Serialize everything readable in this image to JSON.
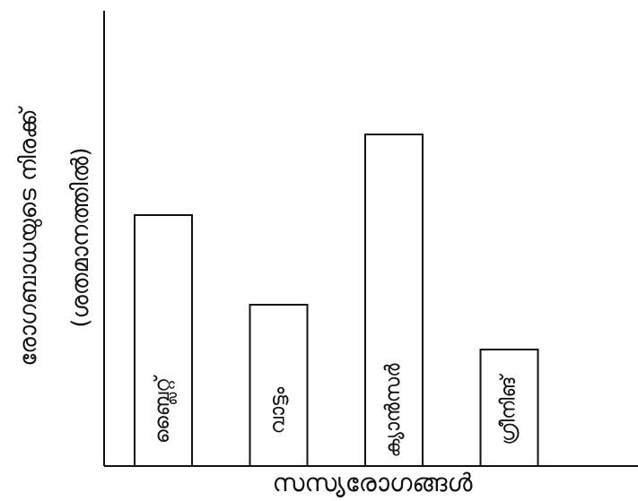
{
  "chart_data": {
    "type": "bar",
    "categories": [
      "ബ്ലൈറ്റ്",
      "വാട്ടം",
      "ക്യാൻസർ",
      "ഗ്രീനിങ്"
    ],
    "values": [
      56,
      36,
      74,
      26
    ],
    "ylim": [
      0,
      100
    ],
    "xlabel": "സസ്യരോഗങ്ങൾ",
    "ylabel": "രോഗബാധയുടെ നിരക്ക്",
    "ylabel_sub": "(ശതമാനത്തിൽ)",
    "grid": false,
    "bar_fill": "#ffffff",
    "bar_stroke": "#111111",
    "axis_color": "#111111"
  }
}
